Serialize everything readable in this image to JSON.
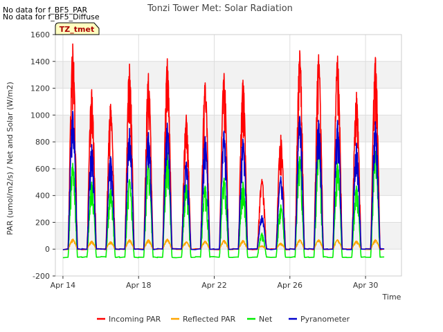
{
  "chart_data": {
    "type": "line",
    "title": "Tonzi Tower Met: Solar Radiation",
    "xlabel": "Time",
    "ylabel": "PAR (umol/m2/s) / Net and Solar (W/m2)",
    "xlim": [
      13.6,
      31.9
    ],
    "ylim": [
      -200,
      1600
    ],
    "yticks": [
      -200,
      0,
      200,
      400,
      600,
      800,
      1000,
      1200,
      1400,
      1600
    ],
    "xticks": [
      {
        "value": 14,
        "label": "Apr 14"
      },
      {
        "value": 18,
        "label": "Apr 18"
      },
      {
        "value": 22,
        "label": "Apr 22"
      },
      {
        "value": 26,
        "label": "Apr 26"
      },
      {
        "value": 30,
        "label": "Apr 30"
      }
    ],
    "grid": true,
    "banding": true,
    "legend_placement": "bottom",
    "notes": [
      "No data for f_BF5_PAR",
      "No data for f_BF5_Diffuse"
    ],
    "badge": "TZ_tmet",
    "series": [
      {
        "name": "Incoming PAR",
        "color": "#ff0000",
        "daily_peaks": [
          1530,
          1190,
          1080,
          1380,
          1310,
          1420,
          1000,
          1240,
          1310,
          1260,
          520,
          850,
          1480,
          1450,
          1440,
          1170,
          1430
        ]
      },
      {
        "name": "Reflected PAR",
        "color": "#ffa500",
        "daily_peaks": [
          75,
          60,
          55,
          70,
          70,
          75,
          55,
          60,
          65,
          65,
          25,
          45,
          70,
          70,
          70,
          60,
          70
        ]
      },
      {
        "name": "Net",
        "color": "#00ee00",
        "daily_peaks": [
          640,
          500,
          450,
          520,
          650,
          720,
          480,
          470,
          530,
          500,
          120,
          330,
          690,
          730,
          640,
          470,
          730
        ],
        "night_value": -60
      },
      {
        "name": "Pyranometer",
        "color": "#0000cc",
        "daily_peaks": [
          1030,
          780,
          690,
          900,
          870,
          940,
          650,
          840,
          880,
          820,
          250,
          540,
          990,
          960,
          960,
          790,
          950
        ]
      }
    ],
    "day_start": 14
  }
}
